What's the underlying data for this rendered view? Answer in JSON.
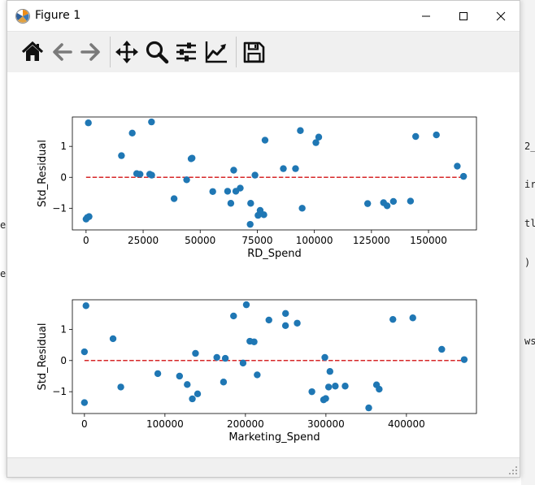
{
  "window": {
    "title": "Figure 1"
  },
  "toolbar": {
    "icons": [
      "home-icon",
      "back-arrow-icon",
      "forward-arrow-icon",
      "pan-move-icon",
      "zoom-magnifier-icon",
      "configure-subplots-icon",
      "edit-axis-lines-icon",
      "save-floppy-icon"
    ]
  },
  "background_fragments": [
    "e",
    "et",
    "2_",
    "ir",
    "tl",
    ")",
    "ws"
  ],
  "chart_data": [
    {
      "type": "scatter",
      "title": "",
      "xlabel": "RD_Spend",
      "ylabel": "Std_Residual",
      "xlim": [
        -6000,
        171000
      ],
      "ylim": [
        -1.7,
        1.95
      ],
      "xticks": [
        0,
        25000,
        50000,
        75000,
        100000,
        125000,
        150000
      ],
      "xtick_labels": [
        "0",
        "25000",
        "50000",
        "75000",
        "100000",
        "125000",
        "150000"
      ],
      "yticks": [
        1,
        0,
        -1
      ],
      "ytick_labels": [
        "1",
        "0",
        "−1"
      ],
      "reference_line": {
        "y": 0,
        "x_range": [
          0,
          165000
        ],
        "style": "dashed",
        "color": "#d62728"
      },
      "marker_color": "#1f77b4",
      "points": [
        {
          "x": 165349,
          "y": 0.03
        },
        {
          "x": 162598,
          "y": 0.36
        },
        {
          "x": 153442,
          "y": 1.37
        },
        {
          "x": 144372,
          "y": 1.32
        },
        {
          "x": 142107,
          "y": -0.77
        },
        {
          "x": 131877,
          "y": -0.92
        },
        {
          "x": 134615,
          "y": -0.78
        },
        {
          "x": 130298,
          "y": -0.82
        },
        {
          "x": 123335,
          "y": -0.85
        },
        {
          "x": 101914,
          "y": 1.3
        },
        {
          "x": 100672,
          "y": 1.12
        },
        {
          "x": 94657,
          "y": -1.0
        },
        {
          "x": 93864,
          "y": 1.51
        },
        {
          "x": 91749,
          "y": 0.28
        },
        {
          "x": 86419,
          "y": 0.28
        },
        {
          "x": 78389,
          "y": 1.2
        },
        {
          "x": 77877,
          "y": -1.21
        },
        {
          "x": 76254,
          "y": -1.07
        },
        {
          "x": 73994,
          "y": 0.07
        },
        {
          "x": 72108,
          "y": -0.84
        },
        {
          "x": 75328,
          "y": -1.23
        },
        {
          "x": 71886,
          "y": -1.52
        },
        {
          "x": 67532,
          "y": -0.35
        },
        {
          "x": 64665,
          "y": 0.23
        },
        {
          "x": 65605,
          "y": -0.45
        },
        {
          "x": 61994,
          "y": -0.45
        },
        {
          "x": 63408,
          "y": -0.84
        },
        {
          "x": 55494,
          "y": -0.46
        },
        {
          "x": 46426,
          "y": 0.62
        },
        {
          "x": 46014,
          "y": 0.6
        },
        {
          "x": 28663,
          "y": 1.79
        },
        {
          "x": 44070,
          "y": -0.08
        },
        {
          "x": 20230,
          "y": 1.43
        },
        {
          "x": 38558,
          "y": -0.69
        },
        {
          "x": 28754,
          "y": 0.07
        },
        {
          "x": 27893,
          "y": 0.1
        },
        {
          "x": 23641,
          "y": 0.1
        },
        {
          "x": 15506,
          "y": 0.7
        },
        {
          "x": 22178,
          "y": 0.12
        },
        {
          "x": 1001,
          "y": 1.76
        },
        {
          "x": 1315,
          "y": -1.27
        },
        {
          "x": 0,
          "y": -1.35
        },
        {
          "x": 542,
          "y": -1.3
        }
      ]
    },
    {
      "type": "scatter",
      "title": "",
      "xlabel": "Marketing_Spend",
      "ylabel": "Std_Residual",
      "xlim": [
        -15000,
        487000
      ],
      "ylim": [
        -1.7,
        1.95
      ],
      "xticks": [
        0,
        100000,
        200000,
        300000,
        400000
      ],
      "xtick_labels": [
        "0",
        "100000",
        "200000",
        "300000",
        "400000"
      ],
      "yticks": [
        1,
        0,
        -1
      ],
      "ytick_labels": [
        "1",
        "0",
        "−1"
      ],
      "reference_line": {
        "y": 0,
        "x_range": [
          0,
          471784
        ],
        "style": "dashed",
        "color": "#d62728"
      },
      "marker_color": "#1f77b4",
      "points": [
        {
          "x": 471784,
          "y": 0.03
        },
        {
          "x": 443899,
          "y": 0.36
        },
        {
          "x": 407935,
          "y": 1.37
        },
        {
          "x": 383200,
          "y": 1.32
        },
        {
          "x": 366168,
          "y": -0.92
        },
        {
          "x": 362861,
          "y": -0.78
        },
        {
          "x": 353184,
          "y": -1.52
        },
        {
          "x": 323877,
          "y": -0.82
        },
        {
          "x": 311613,
          "y": -0.82
        },
        {
          "x": 304982,
          "y": -0.35
        },
        {
          "x": 298664,
          "y": 0.1
        },
        {
          "x": 303320,
          "y": -0.85
        },
        {
          "x": 299738,
          "y": -1.22
        },
        {
          "x": 297114,
          "y": -1.26
        },
        {
          "x": 282575,
          "y": -1.0
        },
        {
          "x": 264346,
          "y": 1.2
        },
        {
          "x": 249745,
          "y": 1.12
        },
        {
          "x": 249839,
          "y": 1.51
        },
        {
          "x": 229161,
          "y": 1.3
        },
        {
          "x": 214635,
          "y": -0.46
        },
        {
          "x": 210798,
          "y": 0.6
        },
        {
          "x": 205517,
          "y": 0.62
        },
        {
          "x": 201126,
          "y": 1.79
        },
        {
          "x": 197029,
          "y": -0.08
        },
        {
          "x": 185265,
          "y": 1.43
        },
        {
          "x": 174999,
          "y": 0.07
        },
        {
          "x": 172795,
          "y": -0.69
        },
        {
          "x": 164470,
          "y": 0.1
        },
        {
          "x": 140575,
          "y": -1.07
        },
        {
          "x": 137962,
          "y": 0.23
        },
        {
          "x": 134050,
          "y": -1.23
        },
        {
          "x": 127716,
          "y": -0.77
        },
        {
          "x": 118148,
          "y": -0.5
        },
        {
          "x": 91131,
          "y": -0.42
        },
        {
          "x": 45173,
          "y": -0.85
        },
        {
          "x": 35534,
          "y": 0.7
        },
        {
          "x": 1904,
          "y": 1.76
        },
        {
          "x": 0,
          "y": 0.28
        },
        {
          "x": 0,
          "y": -1.35
        }
      ]
    }
  ]
}
